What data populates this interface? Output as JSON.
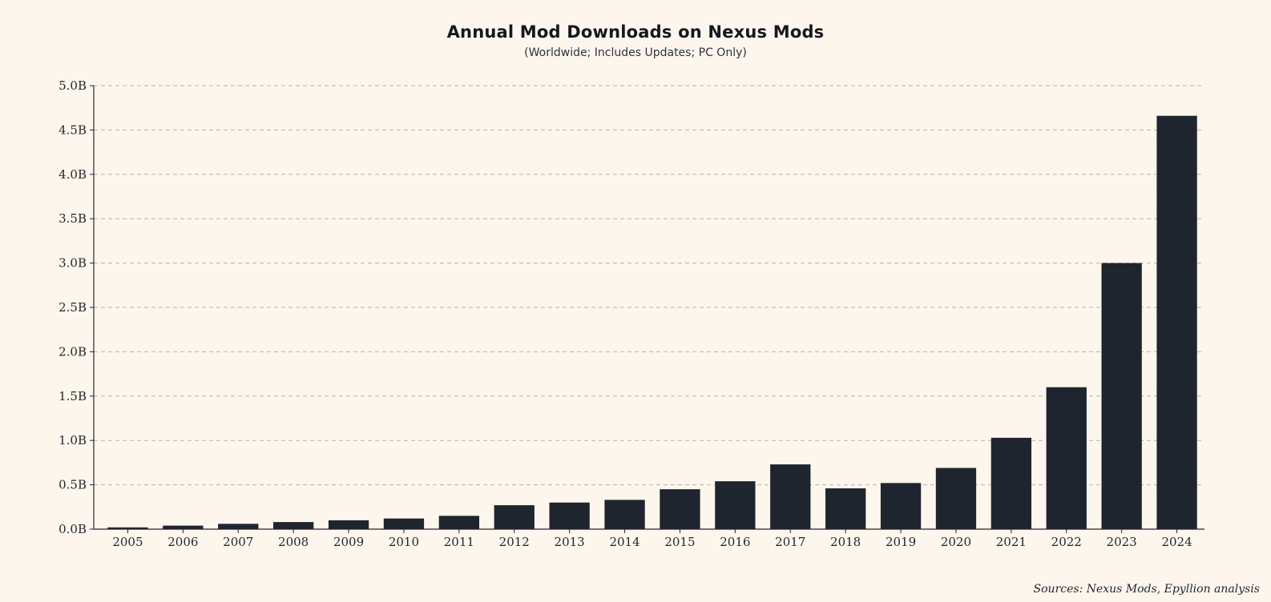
{
  "chart_data": {
    "type": "bar",
    "title": "Annual Mod Downloads on Nexus Mods",
    "subtitle": "(Worldwide; Includes Updates; PC Only)",
    "xlabel": "",
    "ylabel": "",
    "categories": [
      "2005",
      "2006",
      "2007",
      "2008",
      "2009",
      "2010",
      "2011",
      "2012",
      "2013",
      "2014",
      "2015",
      "2016",
      "2017",
      "2018",
      "2019",
      "2020",
      "2021",
      "2022",
      "2023",
      "2024"
    ],
    "values": [
      0.02,
      0.04,
      0.06,
      0.08,
      0.1,
      0.12,
      0.15,
      0.27,
      0.3,
      0.33,
      0.45,
      0.54,
      0.73,
      0.46,
      0.52,
      0.69,
      1.03,
      1.6,
      3.0,
      4.66
    ],
    "value_unit": "billion downloads",
    "ylim": [
      0,
      5.0
    ],
    "yticks": [
      0,
      0.5,
      1.0,
      1.5,
      2.0,
      2.5,
      3.0,
      3.5,
      4.0,
      4.5,
      5.0
    ],
    "ytick_labels": [
      "0.0B",
      "0.5B",
      "1.0B",
      "1.5B",
      "2.0B",
      "2.5B",
      "3.0B",
      "3.5B",
      "4.0B",
      "4.5B",
      "5.0B"
    ],
    "grid": true,
    "legend": "none",
    "bar_color": "#1f252e",
    "grid_color": "#b8b4ac",
    "background_color": "#fdf6ec"
  },
  "footer": {
    "source": "Sources: Nexus Mods, Epyllion analysis"
  }
}
